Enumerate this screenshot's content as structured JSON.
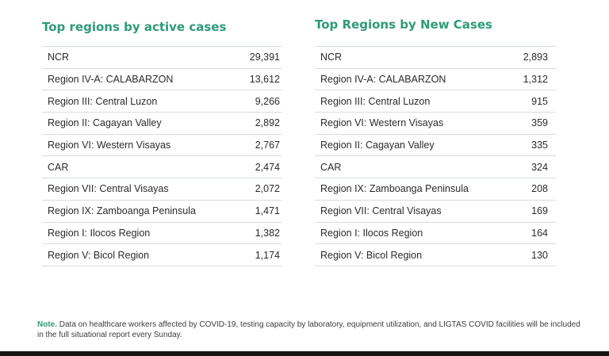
{
  "active_cases": {
    "title": "Top regions by active cases",
    "rows": [
      {
        "region": "NCR",
        "value": "29,391"
      },
      {
        "region": "Region IV-A: CALABARZON",
        "value": "13,612"
      },
      {
        "region": "Region III: Central Luzon",
        "value": "9,266"
      },
      {
        "region": "Region II: Cagayan Valley",
        "value": "2,892"
      },
      {
        "region": "Region VI: Western Visayas",
        "value": "2,767"
      },
      {
        "region": "CAR",
        "value": "2,474"
      },
      {
        "region": "Region VII: Central Visayas",
        "value": "2,072"
      },
      {
        "region": "Region IX: Zamboanga Peninsula",
        "value": "1,471"
      },
      {
        "region": "Region I: Ilocos Region",
        "value": "1,382"
      },
      {
        "region": "Region V: Bicol Region",
        "value": "1,174"
      }
    ]
  },
  "new_cases": {
    "title": "Top Regions by New Cases",
    "rows": [
      {
        "region": "NCR",
        "value": "2,893"
      },
      {
        "region": "Region IV-A: CALABARZON",
        "value": "1,312"
      },
      {
        "region": "Region III: Central Luzon",
        "value": "915"
      },
      {
        "region": "Region VI: Western Visayas",
        "value": "359"
      },
      {
        "region": "Region II: Cagayan Valley",
        "value": "335"
      },
      {
        "region": "CAR",
        "value": "324"
      },
      {
        "region": "Region IX: Zamboanga Peninsula",
        "value": "208"
      },
      {
        "region": "Region VII: Central Visayas",
        "value": "169"
      },
      {
        "region": "Region I: Ilocos Region",
        "value": "164"
      },
      {
        "region": "Region V: Bicol Region",
        "value": "130"
      }
    ]
  },
  "note": {
    "label": "Note.",
    "text": " Data on healthcare workers affected by COVID-19,  testing capacity by laboratory, equipment utilization, and LIGTAS COVID facilities will be included in the full situational report every Sunday."
  },
  "colors": {
    "accent": "#2e9a78",
    "rule": "#d7dde2"
  }
}
